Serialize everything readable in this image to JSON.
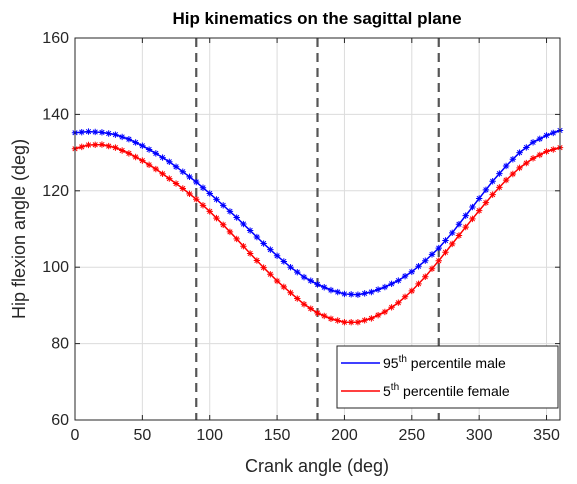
{
  "chart_data": {
    "type": "line",
    "title": "Hip kinematics on the sagittal plane",
    "xlabel": "Crank angle (deg)",
    "ylabel": "Hip flexion angle (deg)",
    "xlim": [
      0,
      360
    ],
    "ylim": [
      60,
      160
    ],
    "xticks": [
      0,
      50,
      100,
      150,
      200,
      250,
      300,
      350
    ],
    "yticks": [
      60,
      80,
      100,
      120,
      140,
      160
    ],
    "grid": true,
    "legend_position": "bottom-right",
    "vertical_lines": [
      90,
      180,
      270
    ],
    "marker": "asterisk",
    "series": [
      {
        "name": "95th percentile male",
        "name_main": "95",
        "name_sup": "th",
        "name_rest": " percentile male",
        "color": "#0000ff",
        "x": [
          0,
          10,
          20,
          30,
          40,
          50,
          60,
          70,
          80,
          90,
          100,
          110,
          120,
          130,
          140,
          150,
          160,
          170,
          180,
          190,
          200,
          210,
          220,
          230,
          240,
          250,
          260,
          270,
          280,
          290,
          300,
          310,
          320,
          330,
          340,
          350,
          360
        ],
        "values": [
          135.2,
          135.5,
          135.3,
          134.7,
          133.5,
          131.8,
          129.8,
          127.6,
          125.0,
          122.3,
          119.3,
          116.2,
          113.0,
          109.6,
          106.2,
          103.0,
          100.0,
          97.4,
          95.5,
          94.0,
          93.0,
          92.8,
          93.5,
          94.8,
          96.5,
          98.8,
          101.7,
          105.0,
          109.0,
          113.5,
          118.0,
          122.5,
          126.5,
          130.0,
          132.7,
          134.5,
          135.8
        ]
      },
      {
        "name": "5th percentile female",
        "name_main": "5",
        "name_sup": "th",
        "name_rest": " percentile female",
        "color": "#ff0000",
        "x": [
          0,
          10,
          20,
          30,
          40,
          50,
          60,
          70,
          80,
          90,
          100,
          110,
          120,
          130,
          140,
          150,
          160,
          170,
          180,
          190,
          200,
          210,
          220,
          230,
          240,
          250,
          260,
          270,
          280,
          290,
          300,
          310,
          320,
          330,
          340,
          350,
          360
        ],
        "values": [
          131.0,
          132.0,
          132.1,
          131.3,
          129.8,
          127.9,
          125.7,
          123.2,
          120.6,
          117.8,
          114.6,
          111.1,
          107.4,
          103.6,
          99.9,
          96.4,
          93.3,
          90.3,
          88.0,
          86.5,
          85.6,
          85.6,
          86.6,
          88.3,
          90.7,
          93.8,
          97.5,
          101.7,
          106.1,
          110.5,
          114.8,
          119.0,
          122.8,
          126.0,
          128.5,
          130.3,
          131.3
        ]
      }
    ]
  }
}
